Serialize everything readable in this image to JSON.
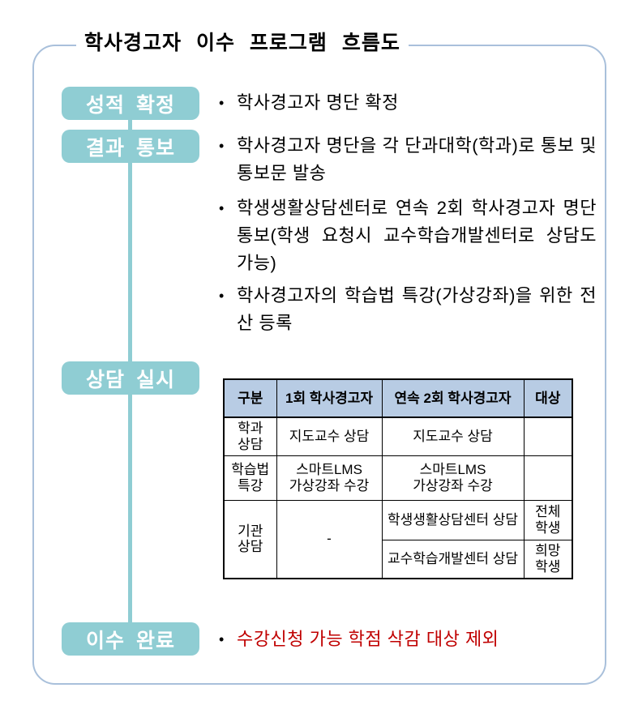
{
  "title": "학사경고자 이수 프로그램 흐름도",
  "bullet_glyph": "•",
  "colors": {
    "accent_teal": "#8fcdd3",
    "frame_blue": "#a9c0db",
    "table_header_blue": "#b8cce4",
    "alert_red": "#c00000"
  },
  "steps": {
    "grade": {
      "label": "성적 확정"
    },
    "notify": {
      "label": "결과 통보"
    },
    "counsel": {
      "label": "상담 실시"
    },
    "complete": {
      "label": "이수 완료"
    }
  },
  "notes": {
    "grade_note": "학사경고자 명단 확정",
    "notify_note1": "학사경고자 명단을 각 단과대학(학과)로 통보 및 통보문 발송",
    "notify_note2": "학생생활상담센터로 연속 2회 학사경고자 명단 통보(학생 요청시 교수학습개발센터로 상담도 가능)",
    "notify_note3": "학사경고자의 학습법 특강(가상강좌)을 위한 전산 등록",
    "complete_note": "수강신청 가능 학점 삭감 대상 제외"
  },
  "table": {
    "headers": {
      "category": "구분",
      "first_warning": "1회 학사경고자",
      "second_warning": "연속 2회 학사경고자",
      "target": "대상"
    },
    "dept_row": {
      "category": "학과\n상담",
      "first": "지도교수 상담",
      "second": "지도교수 상담",
      "target": ""
    },
    "lecture_row": {
      "category": "학습법\n특강",
      "first": "스마트LMS\n가상강좌 수강",
      "second": "스마트LMS\n가상강좌 수강",
      "target": ""
    },
    "org_row": {
      "category": "기관\n상담",
      "first": "-",
      "second_a": "학생생활상담센터 상담",
      "target_a": "전체\n학생",
      "second_b": "교수학습개발센터 상담",
      "target_b": "희망\n학생"
    }
  }
}
